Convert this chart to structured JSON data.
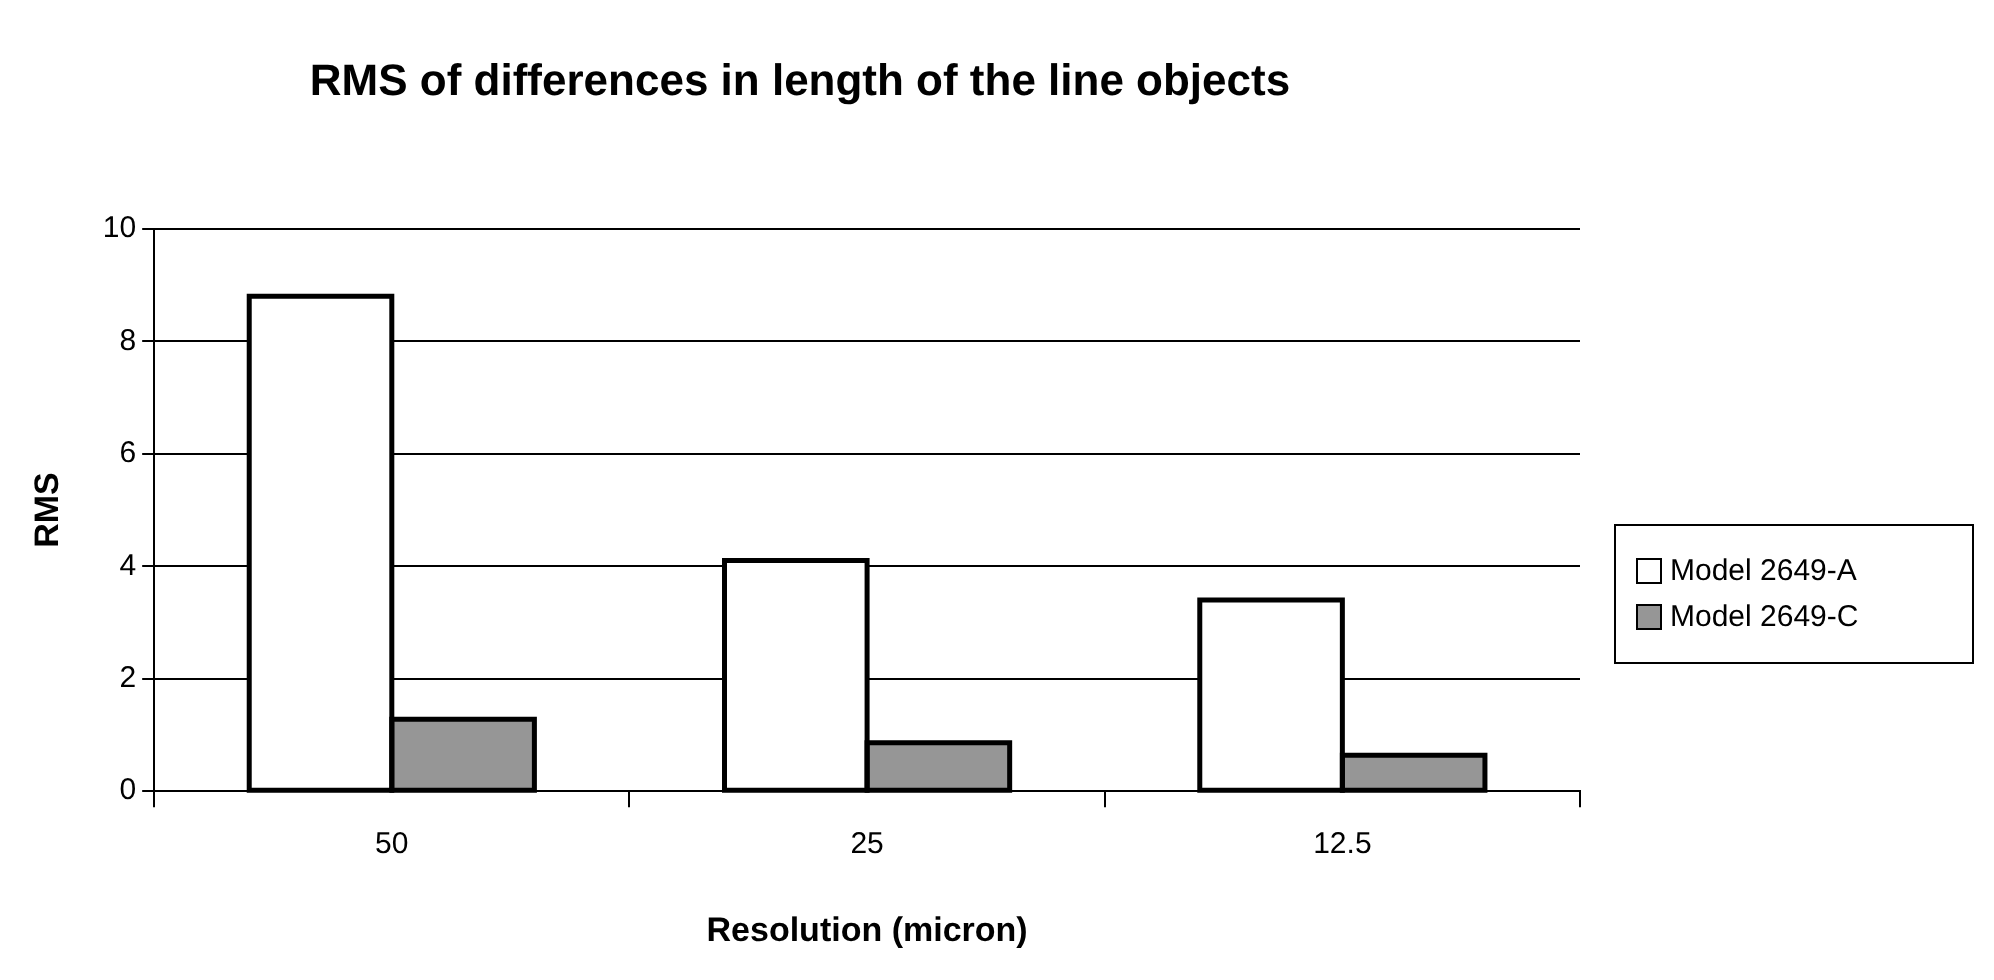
{
  "chart_data": {
    "type": "bar",
    "title": "RMS of differences in length of the line objects",
    "xlabel": "Resolution (micron)",
    "ylabel": "RMS",
    "categories": [
      "50",
      "25",
      "12.5"
    ],
    "series": [
      {
        "name": "Model 2649-A",
        "color": "#ffffff",
        "values": [
          8.8,
          4.1,
          3.4
        ]
      },
      {
        "name": "Model 2649-C",
        "color": "#969696",
        "values": [
          1.28,
          0.86,
          0.64
        ]
      }
    ],
    "ylim": [
      0,
      10
    ],
    "yticks": [
      0,
      2,
      4,
      6,
      8,
      10
    ],
    "grid": "y",
    "legend": "right"
  }
}
